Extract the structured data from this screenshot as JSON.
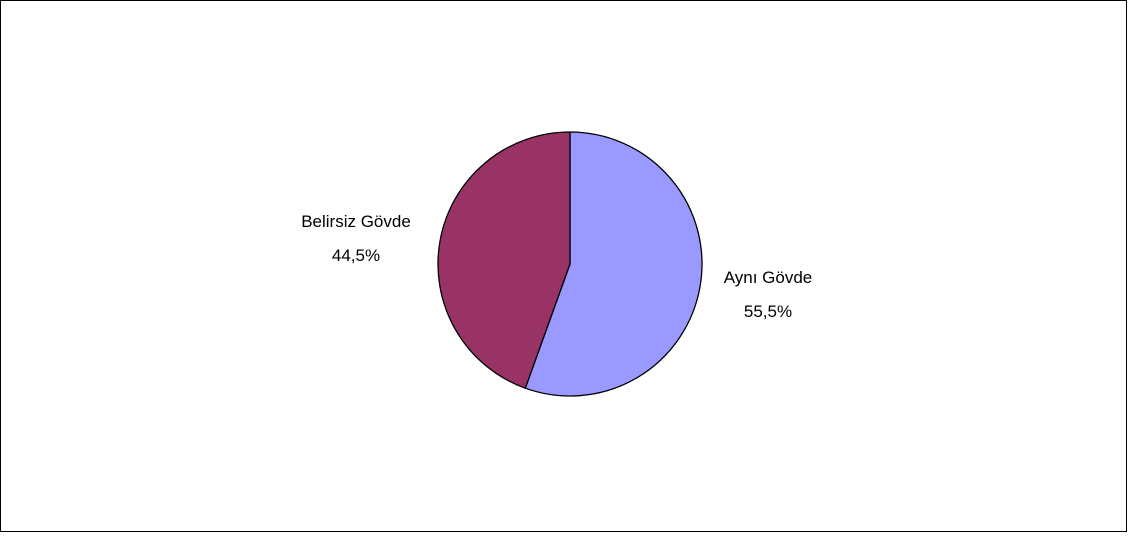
{
  "chart_data": {
    "type": "pie",
    "title": "",
    "slices": [
      {
        "label": "Aynı Gövde",
        "value": 55.5,
        "value_label": "55,5%",
        "color": "#9999ff"
      },
      {
        "label": "Belirsiz Gövde",
        "value": 44.5,
        "value_label": "44,5%",
        "color": "#993366"
      }
    ],
    "start_angle": "12 o'clock",
    "direction": "clockwise",
    "legend": "none",
    "data_labels": "outside, category name and percentage",
    "slice_border_color": "#000000",
    "frame_border_color": "#000000"
  }
}
